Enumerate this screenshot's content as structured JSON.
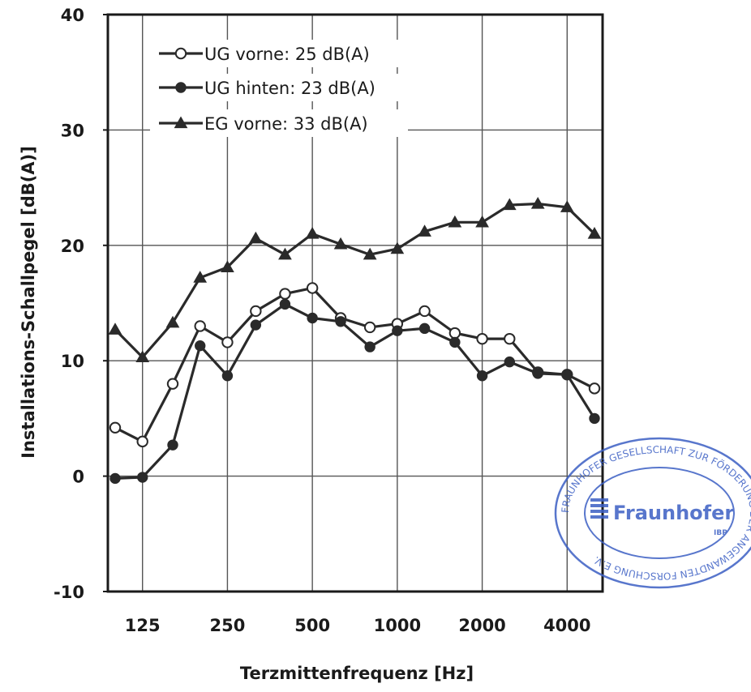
{
  "chart_data": {
    "type": "line",
    "xlabel": "Terzmittenfrequenz [Hz]",
    "ylabel": "Installations-Schallpegel [dB(A)]",
    "ylim": [
      -10,
      40
    ],
    "yticks": [
      -10,
      0,
      10,
      20,
      30,
      40
    ],
    "x_scale": "log",
    "x": [
      100,
      125,
      160,
      200,
      250,
      315,
      400,
      500,
      630,
      800,
      1000,
      1250,
      1600,
      2000,
      2500,
      3150,
      4000,
      5000
    ],
    "xtick_values": [
      125,
      250,
      500,
      1000,
      2000,
      4000
    ],
    "xtick_labels": [
      "125",
      "250",
      "500",
      "1000",
      "2000",
      "4000"
    ],
    "grid": true,
    "legend_position": "top-left",
    "series": [
      {
        "name": "UG vorne: 25 dB(A)",
        "marker": "open-circle",
        "color": "#2a2a2a",
        "values": [
          4.2,
          3.0,
          8.0,
          13.0,
          11.6,
          14.3,
          15.8,
          16.3,
          13.7,
          12.9,
          13.2,
          14.3,
          12.4,
          11.9,
          11.9,
          9.0,
          8.8,
          7.6
        ]
      },
      {
        "name": "UG hinten: 23 dB(A)",
        "marker": "filled-circle",
        "color": "#2a2a2a",
        "values": [
          -0.2,
          -0.1,
          2.7,
          11.3,
          8.7,
          13.1,
          14.9,
          13.7,
          13.4,
          11.2,
          12.6,
          12.8,
          11.6,
          8.7,
          9.9,
          8.9,
          8.8,
          5.0
        ]
      },
      {
        "name": "EG vorne: 33 dB(A)",
        "marker": "filled-triangle",
        "color": "#2a2a2a",
        "values": [
          12.7,
          10.3,
          13.3,
          17.2,
          18.1,
          20.6,
          19.2,
          21.0,
          20.1,
          19.2,
          19.7,
          21.2,
          22.0,
          22.0,
          23.5,
          23.6,
          23.3,
          21.0
        ]
      }
    ]
  },
  "stamp": {
    "logo_text": "Fraunhofer",
    "sub_text": "IBP",
    "ring_text": "FRAUNHOFER GESELLSCHAFT ZUR FÖRDERUNG DER ANGEWANDTEN FORSCHUNG E.V.",
    "color": "#3b5fc4"
  }
}
